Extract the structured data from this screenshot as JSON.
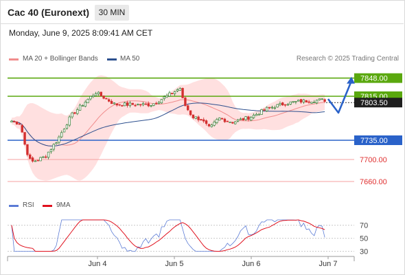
{
  "header": {
    "instrument": "Cac 40 (Euronext)",
    "timeframe": "30 MIN",
    "datetime": "Monday, June 9, 2025 8:09:41 AM CET"
  },
  "legend": {
    "ma20_label": "MA 20 + Bollinger Bands",
    "ma50_label": "MA 50",
    "copyright": "Research © 2025 Trading Central",
    "colors": {
      "ma20": "#f08c8c",
      "ma50": "#2c4f8e",
      "bollinger": "#ffd6d6"
    }
  },
  "rsi_legend": {
    "rsi_label": "RSI",
    "ma9_label": "9MA",
    "colors": {
      "rsi": "#5b7bd5",
      "ma9": "#e0101d"
    }
  },
  "chart_data": [
    {
      "type": "candlestick",
      "title": "Cac 40 (Euronext)",
      "ylim": [
        7640,
        7865
      ],
      "x_ticks": [
        "Jun 4",
        "Jun 5",
        "Jun 6",
        "Jun 7"
      ],
      "levels": [
        {
          "value": 7848.0,
          "label": "7848.00",
          "style": "green"
        },
        {
          "value": 7815.0,
          "label": "7815.00",
          "style": "green"
        },
        {
          "value": 7735.0,
          "label": "7735.00",
          "style": "blue"
        },
        {
          "value": 7700.0,
          "label": "7700.00",
          "style": "red"
        },
        {
          "value": 7660.0,
          "label": "7660.00",
          "style": "red"
        }
      ],
      "last_price": {
        "value": 7803.5,
        "label": "7803.50"
      },
      "scenario_arrow": {
        "from": 7810,
        "dip": 7785,
        "target": 7848
      },
      "colors": {
        "up": "#2e7d32",
        "down": "#d32f2f",
        "green_level": "#5aa80e",
        "blue_level": "#2a62c9",
        "red_level": "#f4a0a0"
      }
    },
    {
      "type": "line",
      "title": "RSI",
      "ylim": [
        20,
        80
      ],
      "y_ticks": [
        70,
        50,
        30
      ],
      "series": [
        {
          "name": "RSI"
        },
        {
          "name": "9MA"
        }
      ]
    }
  ]
}
